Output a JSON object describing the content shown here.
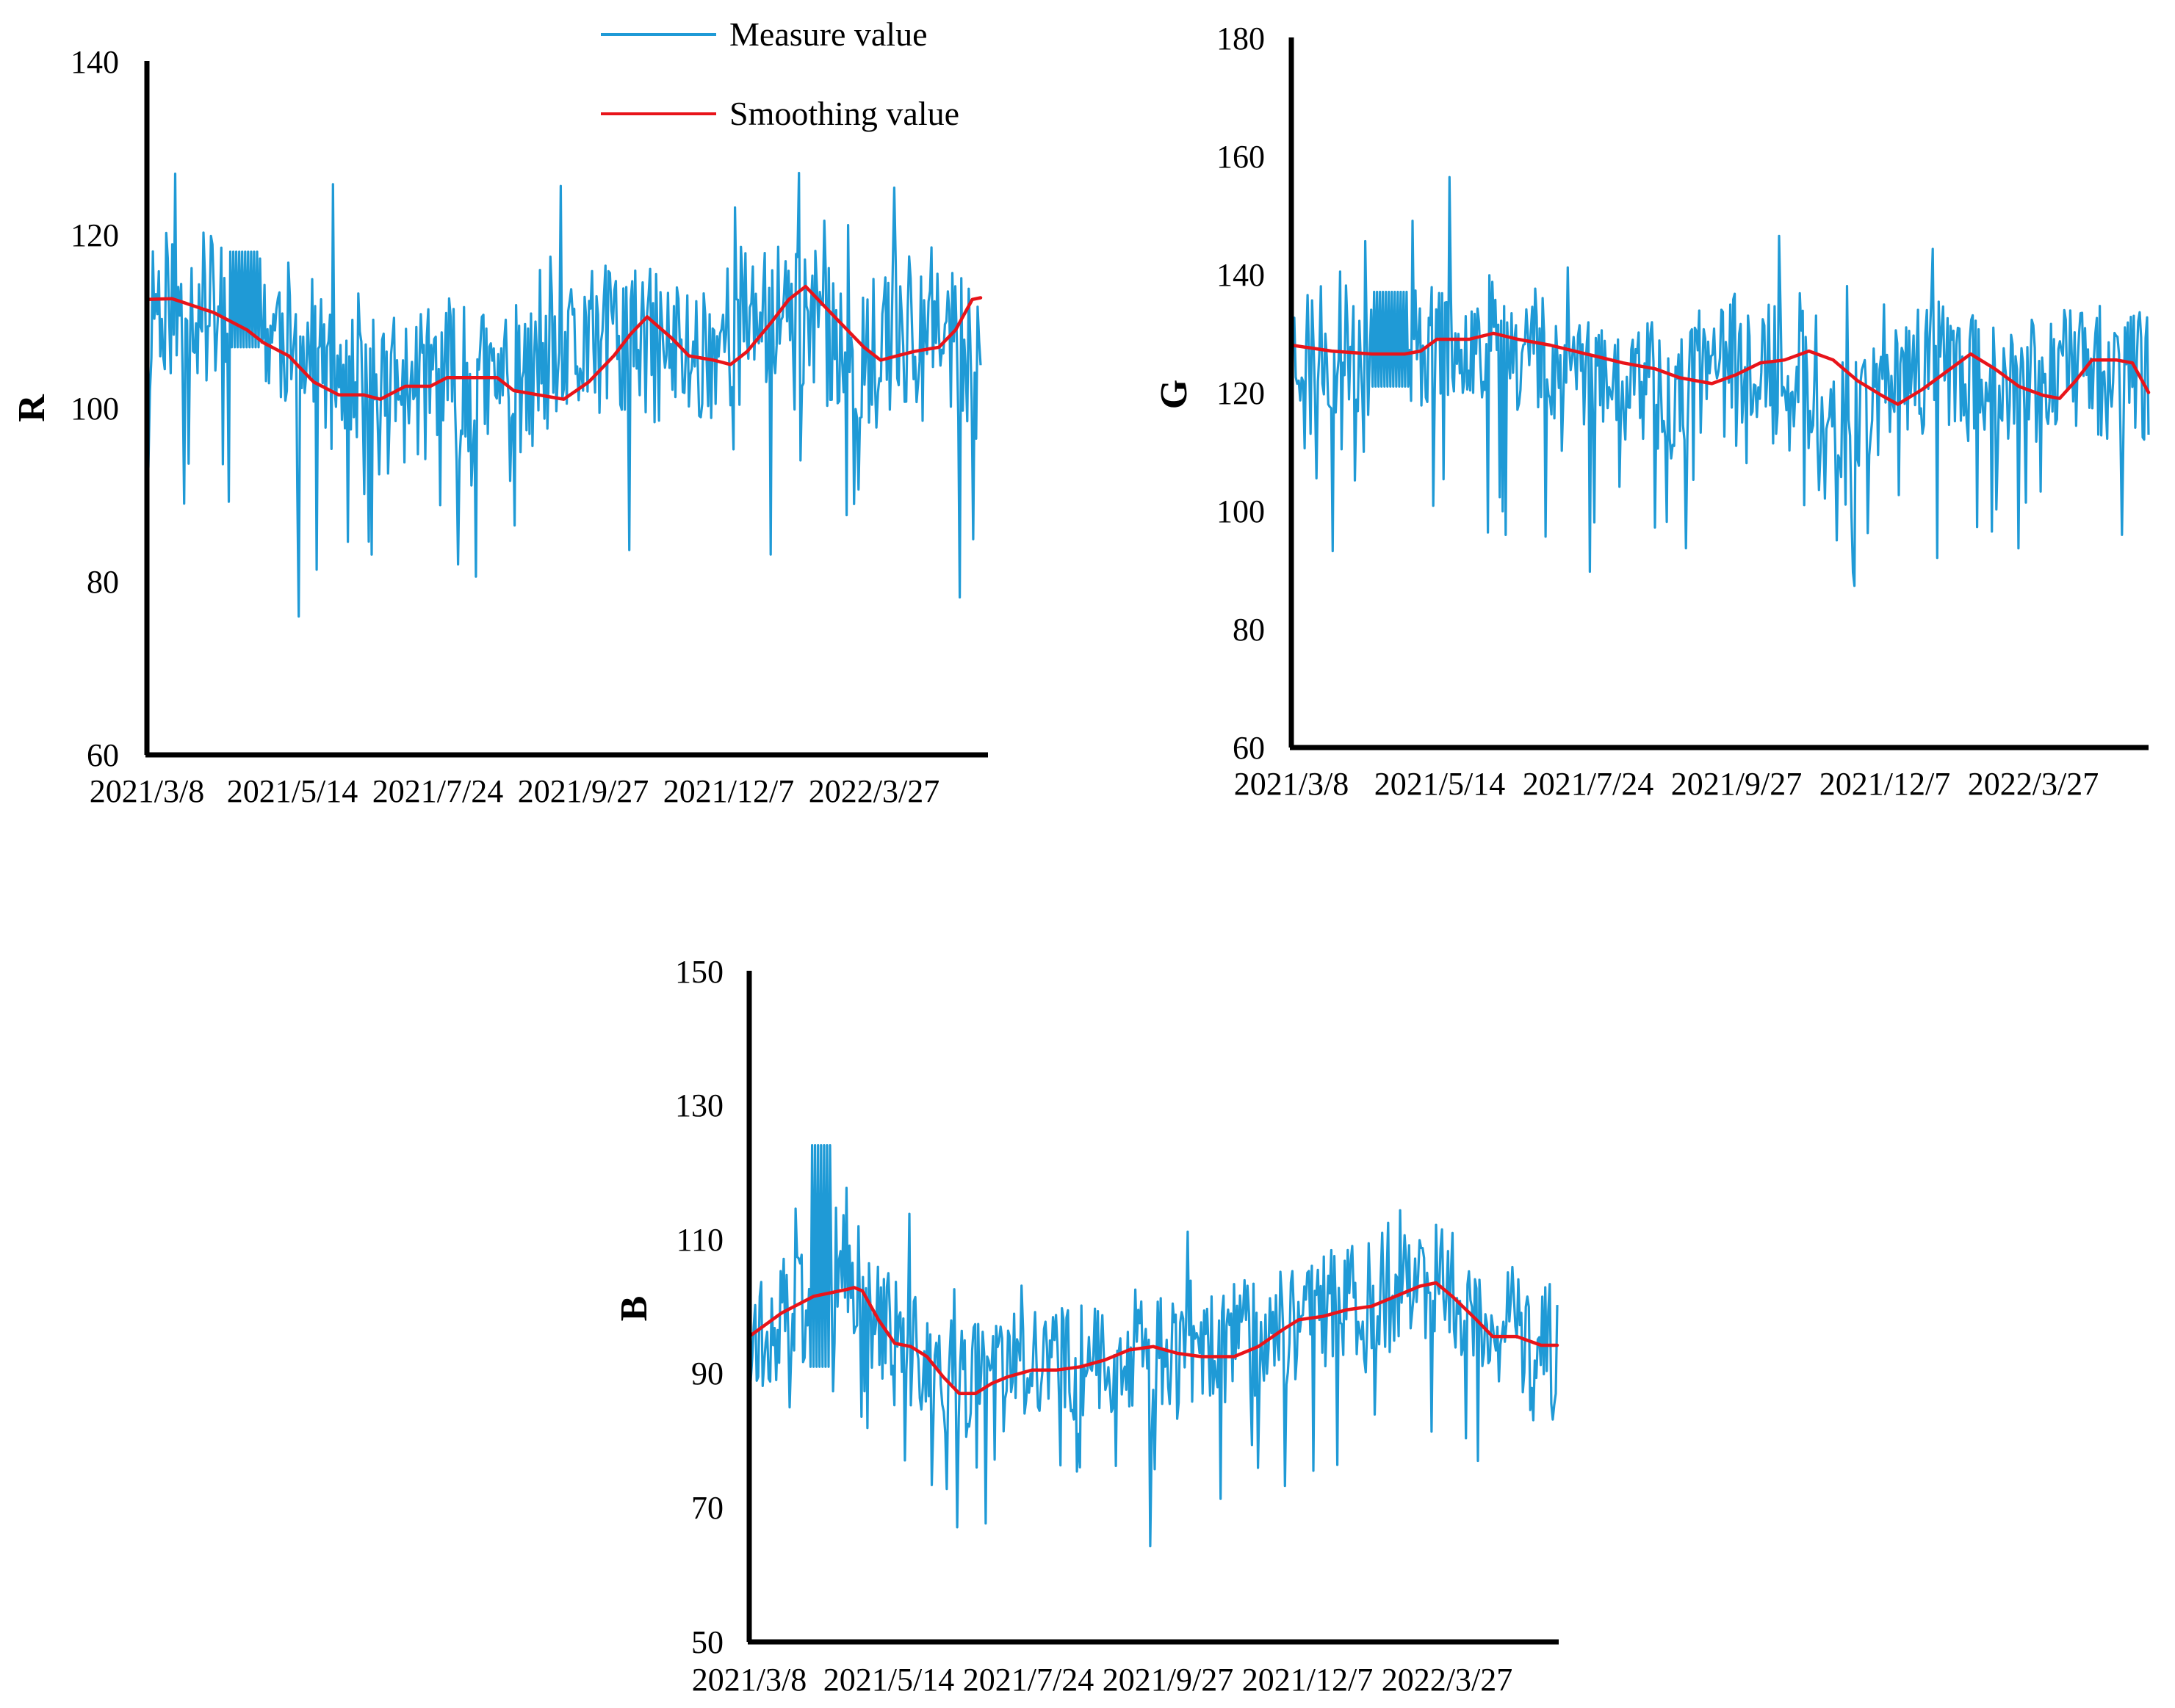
{
  "figure": {
    "legend": {
      "entries": [
        {
          "label": "Measure value",
          "color": "#1f9ad6"
        },
        {
          "label": "Smoothing value",
          "color": "#e8141a"
        }
      ]
    }
  },
  "chart_data": [
    {
      "id": "R",
      "type": "line",
      "title": "",
      "xlabel": "",
      "ylabel": "R",
      "ylim": [
        60,
        140
      ],
      "yticks": [
        "60",
        "80",
        "100",
        "120",
        "140"
      ],
      "xticks": [
        "2021/3/8",
        "2021/5/14",
        "2021/7/24",
        "2021/9/27",
        "2021/12/7",
        "2022/3/27"
      ],
      "xtick_pos": [
        0,
        0.177,
        0.354,
        0.531,
        0.708,
        0.885
      ],
      "grid": false,
      "series": [
        {
          "name": "Measure value",
          "color": "#1f9ad6",
          "seed": 11,
          "noise": 9,
          "spike_down": 24,
          "spike_up": 14,
          "baseline": [
            [
              0,
              113
            ],
            [
              0.1,
              111
            ],
            [
              0.18,
              108
            ],
            [
              0.25,
              101
            ],
            [
              0.35,
              103
            ],
            [
              0.45,
              102
            ],
            [
              0.55,
              108
            ],
            [
              0.66,
              106
            ],
            [
              0.75,
              112
            ],
            [
              0.86,
              106
            ],
            [
              0.95,
              110
            ],
            [
              1,
              104
            ]
          ],
          "plateau": {
            "x0": 0.1,
            "x1": 0.135,
            "lo": 107,
            "hi": 118
          }
        },
        {
          "name": "Smoothing value",
          "color": "#e8141a",
          "points": [
            [
              0,
              112.5
            ],
            [
              0.03,
              112.6
            ],
            [
              0.08,
              111
            ],
            [
              0.12,
              109
            ],
            [
              0.14,
              107.5
            ],
            [
              0.17,
              106
            ],
            [
              0.2,
              103
            ],
            [
              0.23,
              101.5
            ],
            [
              0.26,
              101.5
            ],
            [
              0.28,
              101
            ],
            [
              0.31,
              102.5
            ],
            [
              0.34,
              102.5
            ],
            [
              0.36,
              103.5
            ],
            [
              0.39,
              103.5
            ],
            [
              0.42,
              103.5
            ],
            [
              0.44,
              102
            ],
            [
              0.47,
              101.5
            ],
            [
              0.5,
              101
            ],
            [
              0.53,
              103
            ],
            [
              0.56,
              106
            ],
            [
              0.58,
              108.5
            ],
            [
              0.6,
              110.5
            ],
            [
              0.63,
              108
            ],
            [
              0.65,
              106
            ],
            [
              0.68,
              105.5
            ],
            [
              0.7,
              105
            ],
            [
              0.72,
              106.5
            ],
            [
              0.75,
              110
            ],
            [
              0.77,
              112.5
            ],
            [
              0.79,
              114
            ],
            [
              0.81,
              112
            ],
            [
              0.83,
              110
            ],
            [
              0.86,
              107
            ],
            [
              0.88,
              105.5
            ],
            [
              0.9,
              106
            ],
            [
              0.92,
              106.5
            ],
            [
              0.95,
              107
            ],
            [
              0.97,
              109
            ],
            [
              0.99,
              112.5
            ],
            [
              1,
              112.7
            ]
          ]
        }
      ]
    },
    {
      "id": "G",
      "type": "line",
      "title": "",
      "xlabel": "",
      "ylabel": "G",
      "ylim": [
        60,
        180
      ],
      "yticks": [
        "60",
        "80",
        "100",
        "120",
        "140",
        "160",
        "180"
      ],
      "xticks": [
        "2021/3/8",
        "2021/5/14",
        "2021/7/24",
        "2021/9/27",
        "2021/12/7",
        "2022/3/27"
      ],
      "xtick_pos": [
        0,
        0.177,
        0.354,
        0.531,
        0.708,
        0.885
      ],
      "grid": false,
      "series": [
        {
          "name": "Measure value",
          "color": "#1f9ad6",
          "seed": 23,
          "noise": 11,
          "spike_down": 28,
          "spike_up": 18,
          "baseline": [
            [
              0,
              128
            ],
            [
              0.08,
              127
            ],
            [
              0.15,
              128
            ],
            [
              0.22,
              130
            ],
            [
              0.3,
              127
            ],
            [
              0.38,
              124
            ],
            [
              0.46,
              121
            ],
            [
              0.55,
              126
            ],
            [
              0.63,
              122
            ],
            [
              0.68,
              117
            ],
            [
              0.74,
              120
            ],
            [
              0.8,
              126
            ],
            [
              0.88,
              119
            ],
            [
              0.95,
              125
            ],
            [
              1,
              123
            ]
          ],
          "plateau": {
            "x0": 0.1,
            "x1": 0.145,
            "lo": 121,
            "hi": 137
          }
        },
        {
          "name": "Smoothing value",
          "color": "#e8141a",
          "points": [
            [
              0,
              128
            ],
            [
              0.05,
              127
            ],
            [
              0.1,
              126.5
            ],
            [
              0.14,
              126.5
            ],
            [
              0.16,
              127
            ],
            [
              0.18,
              129
            ],
            [
              0.22,
              129
            ],
            [
              0.25,
              130
            ],
            [
              0.28,
              129
            ],
            [
              0.32,
              128
            ],
            [
              0.35,
              127
            ],
            [
              0.38,
              126
            ],
            [
              0.41,
              125
            ],
            [
              0.45,
              124
            ],
            [
              0.48,
              122.5
            ],
            [
              0.52,
              121.5
            ],
            [
              0.55,
              123
            ],
            [
              0.58,
              125
            ],
            [
              0.61,
              125.5
            ],
            [
              0.64,
              127
            ],
            [
              0.67,
              125.5
            ],
            [
              0.7,
              122
            ],
            [
              0.73,
              119.5
            ],
            [
              0.75,
              118
            ],
            [
              0.78,
              120.5
            ],
            [
              0.82,
              124.5
            ],
            [
              0.84,
              126.5
            ],
            [
              0.87,
              124
            ],
            [
              0.9,
              121
            ],
            [
              0.93,
              119.5
            ],
            [
              0.95,
              119
            ],
            [
              0.97,
              122
            ],
            [
              0.99,
              125.5
            ],
            [
              1.02,
              125.5
            ],
            [
              1.04,
              125
            ],
            [
              1.06,
              120
            ]
          ]
        }
      ]
    },
    {
      "id": "B",
      "type": "line",
      "title": "",
      "xlabel": "",
      "ylabel": "B",
      "ylim": [
        50,
        150
      ],
      "yticks": [
        "50",
        "70",
        "90",
        "110",
        "130",
        "150"
      ],
      "xticks": [
        "2021/3/8",
        "2021/5/14",
        "2021/7/24",
        "2021/9/27",
        "2021/12/7",
        "2022/3/27"
      ],
      "xtick_pos": [
        0,
        0.177,
        0.354,
        0.531,
        0.708,
        0.885
      ],
      "grid": false,
      "series": [
        {
          "name": "Measure value",
          "color": "#1f9ad6",
          "seed": 37,
          "noise": 9,
          "spike_down": 22,
          "spike_up": 12,
          "baseline": [
            [
              0,
              96
            ],
            [
              0.05,
              99
            ],
            [
              0.1,
              102
            ],
            [
              0.14,
              101
            ],
            [
              0.18,
              96
            ],
            [
              0.25,
              88
            ],
            [
              0.3,
              90
            ],
            [
              0.38,
              91
            ],
            [
              0.46,
              94
            ],
            [
              0.55,
              93
            ],
            [
              0.62,
              96
            ],
            [
              0.7,
              99
            ],
            [
              0.78,
              101
            ],
            [
              0.85,
              104
            ],
            [
              0.92,
              97
            ],
            [
              1,
              94
            ]
          ],
          "plateau": {
            "x0": 0.075,
            "x1": 0.1,
            "lo": 91,
            "hi": 124
          }
        },
        {
          "name": "Smoothing value",
          "color": "#e8141a",
          "points": [
            [
              0,
              95.5
            ],
            [
              0.04,
              99
            ],
            [
              0.08,
              101.5
            ],
            [
              0.12,
              102.5
            ],
            [
              0.13,
              102.8
            ],
            [
              0.14,
              102.3
            ],
            [
              0.16,
              98
            ],
            [
              0.18,
              94.5
            ],
            [
              0.2,
              94
            ],
            [
              0.22,
              92.5
            ],
            [
              0.24,
              89.5
            ],
            [
              0.26,
              87
            ],
            [
              0.28,
              87
            ],
            [
              0.3,
              88.5
            ],
            [
              0.32,
              89.5
            ],
            [
              0.35,
              90.5
            ],
            [
              0.38,
              90.5
            ],
            [
              0.41,
              91
            ],
            [
              0.44,
              92
            ],
            [
              0.47,
              93.5
            ],
            [
              0.5,
              94
            ],
            [
              0.53,
              93
            ],
            [
              0.56,
              92.5
            ],
            [
              0.6,
              92.5
            ],
            [
              0.63,
              94
            ],
            [
              0.66,
              96.5
            ],
            [
              0.68,
              98
            ],
            [
              0.71,
              98.5
            ],
            [
              0.74,
              99.5
            ],
            [
              0.77,
              100
            ],
            [
              0.8,
              101.5
            ],
            [
              0.83,
              103
            ],
            [
              0.85,
              103.5
            ],
            [
              0.87,
              101.5
            ],
            [
              0.9,
              98
            ],
            [
              0.92,
              95.5
            ],
            [
              0.95,
              95.5
            ],
            [
              0.98,
              94.2
            ],
            [
              1,
              94.2
            ]
          ]
        }
      ]
    }
  ]
}
